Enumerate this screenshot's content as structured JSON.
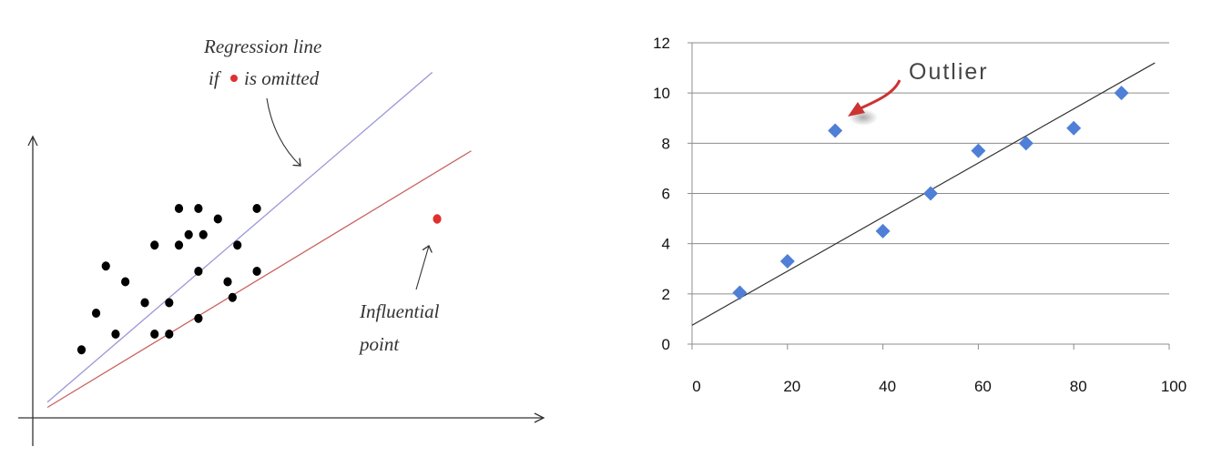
{
  "chart_data": [
    {
      "type": "scatter",
      "annotations": {
        "regression_line_1": "Regression line",
        "regression_line_2_pre": "if",
        "regression_line_2_post": "is omitted",
        "influential_1": "Influential",
        "influential_2": "point"
      },
      "points": [
        [
          1.0,
          1.3
        ],
        [
          1.3,
          2.0
        ],
        [
          1.5,
          2.9
        ],
        [
          1.7,
          1.6
        ],
        [
          1.9,
          2.6
        ],
        [
          2.3,
          2.2
        ],
        [
          2.5,
          3.3
        ],
        [
          2.5,
          1.6
        ],
        [
          2.8,
          2.2
        ],
        [
          2.8,
          1.6
        ],
        [
          3.0,
          3.3
        ],
        [
          3.0,
          4.0
        ],
        [
          3.2,
          3.5
        ],
        [
          3.4,
          1.9
        ],
        [
          3.4,
          2.8
        ],
        [
          3.4,
          4.0
        ],
        [
          3.5,
          3.5
        ],
        [
          3.8,
          3.8
        ],
        [
          4.0,
          2.6
        ],
        [
          4.1,
          2.3
        ],
        [
          4.2,
          3.3
        ],
        [
          4.6,
          4.0
        ],
        [
          4.6,
          2.8
        ]
      ],
      "influential_point": [
        8.3,
        3.8
      ],
      "lines": [
        {
          "name": "Regression line if influential point is omitted",
          "color": "#9a96d8",
          "x": [
            0.3,
            8.2
          ],
          "y": [
            0.3,
            6.6
          ]
        },
        {
          "name": "Regression line with influential point",
          "color": "#c9625f",
          "x": [
            0.3,
            9.0
          ],
          "y": [
            0.2,
            5.1
          ]
        }
      ],
      "colors": {
        "points": "#000000",
        "influential": "#e03030",
        "axes": "#333333"
      }
    },
    {
      "type": "scatter",
      "annotation": "Outlier",
      "x": [
        10,
        20,
        30,
        40,
        50,
        60,
        70,
        80,
        90
      ],
      "y": [
        2.05,
        3.3,
        8.5,
        4.5,
        6.0,
        7.7,
        8.0,
        8.6,
        10.0
      ],
      "trendline": {
        "x": [
          0,
          97
        ],
        "y": [
          0.75,
          11.2
        ]
      },
      "xlim": [
        0,
        100
      ],
      "ylim": [
        0,
        12
      ],
      "xticks": [
        "0",
        "20",
        "40",
        "60",
        "80",
        "100"
      ],
      "yticks": [
        "0",
        "2",
        "4",
        "6",
        "8",
        "10",
        "12"
      ],
      "grid": true,
      "colors": {
        "marker": "#4f7fd6",
        "trend": "#333333",
        "arrow": "#cc3333"
      }
    }
  ]
}
